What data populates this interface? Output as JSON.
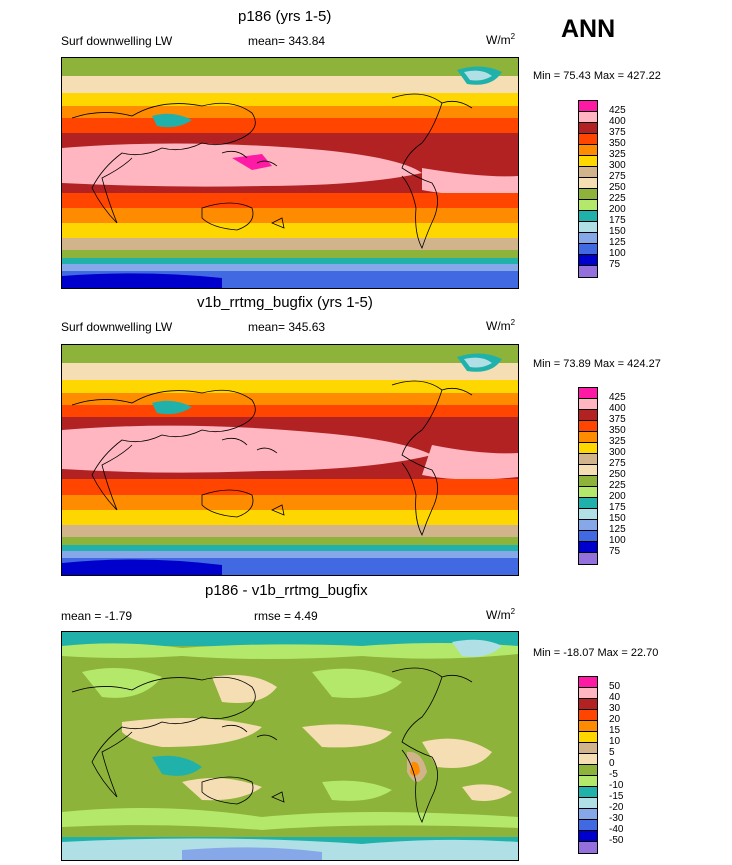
{
  "season": "ANN",
  "panels": [
    {
      "title": "p186 (yrs 1-5)",
      "left_label": "Surf downwelling LW",
      "mean": "mean= 343.84",
      "units": "W/m",
      "units_sup": "2",
      "minmax": "Min =  75.43 Max = 427.22",
      "levels": [
        "425",
        "400",
        "375",
        "350",
        "325",
        "300",
        "275",
        "250",
        "225",
        "200",
        "175",
        "150",
        "125",
        "100",
        "75"
      ]
    },
    {
      "title": "v1b_rrtmg_bugfix (yrs 1-5)",
      "left_label": "Surf downwelling LW",
      "mean": "mean= 345.63",
      "units": "W/m",
      "units_sup": "2",
      "minmax": "Min =  73.89 Max = 424.27",
      "levels": [
        "425",
        "400",
        "375",
        "350",
        "325",
        "300",
        "275",
        "250",
        "225",
        "200",
        "175",
        "150",
        "125",
        "100",
        "75"
      ]
    },
    {
      "title": "p186 - v1b_rrtmg_bugfix",
      "left_label": "mean =  -1.79",
      "mean": "rmse =   4.49",
      "units": "W/m",
      "units_sup": "2",
      "minmax": "Min = -18.07 Max =  22.70",
      "levels": [
        "50",
        "40",
        "30",
        "20",
        "15",
        "10",
        "5",
        "0",
        "-5",
        "-10",
        "-15",
        "-20",
        "-30",
        "-40",
        "-50"
      ]
    }
  ],
  "colors": {
    "scale": [
      "#ff1aa6",
      "#ffb6c1",
      "#b22222",
      "#ff4500",
      "#ff8c00",
      "#ffd700",
      "#d2b48c",
      "#f5deb3",
      "#8db33a",
      "#b3e86b",
      "#20b2aa",
      "#b0e0e6",
      "#87a8e8",
      "#4169e1",
      "#0000cd",
      "#9370db"
    ]
  }
}
